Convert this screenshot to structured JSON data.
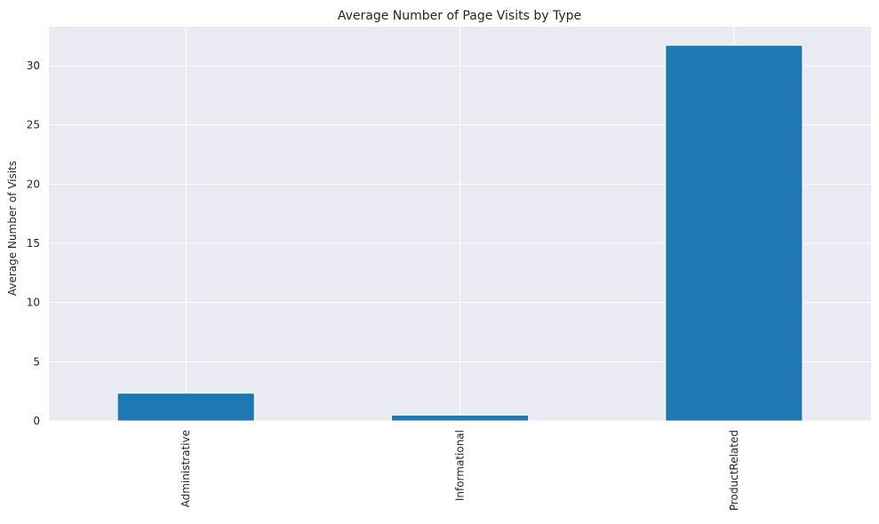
{
  "chart_data": {
    "type": "bar",
    "title": "Average Number of Page Visits by Type",
    "xlabel": "",
    "ylabel": "Average Number of Visits",
    "categories": [
      "Administrative",
      "Informational",
      "ProductRelated"
    ],
    "values": [
      2.35,
      0.5,
      31.73
    ],
    "ylim": [
      0,
      33.3
    ],
    "yticks": [
      0,
      5,
      10,
      15,
      20,
      25,
      30
    ],
    "grid": true,
    "legend": "none",
    "colors": {
      "bar": "#1f77b4",
      "plot_background": "#eaeaf2",
      "grid": "#ffffff",
      "text": "#262626"
    }
  }
}
